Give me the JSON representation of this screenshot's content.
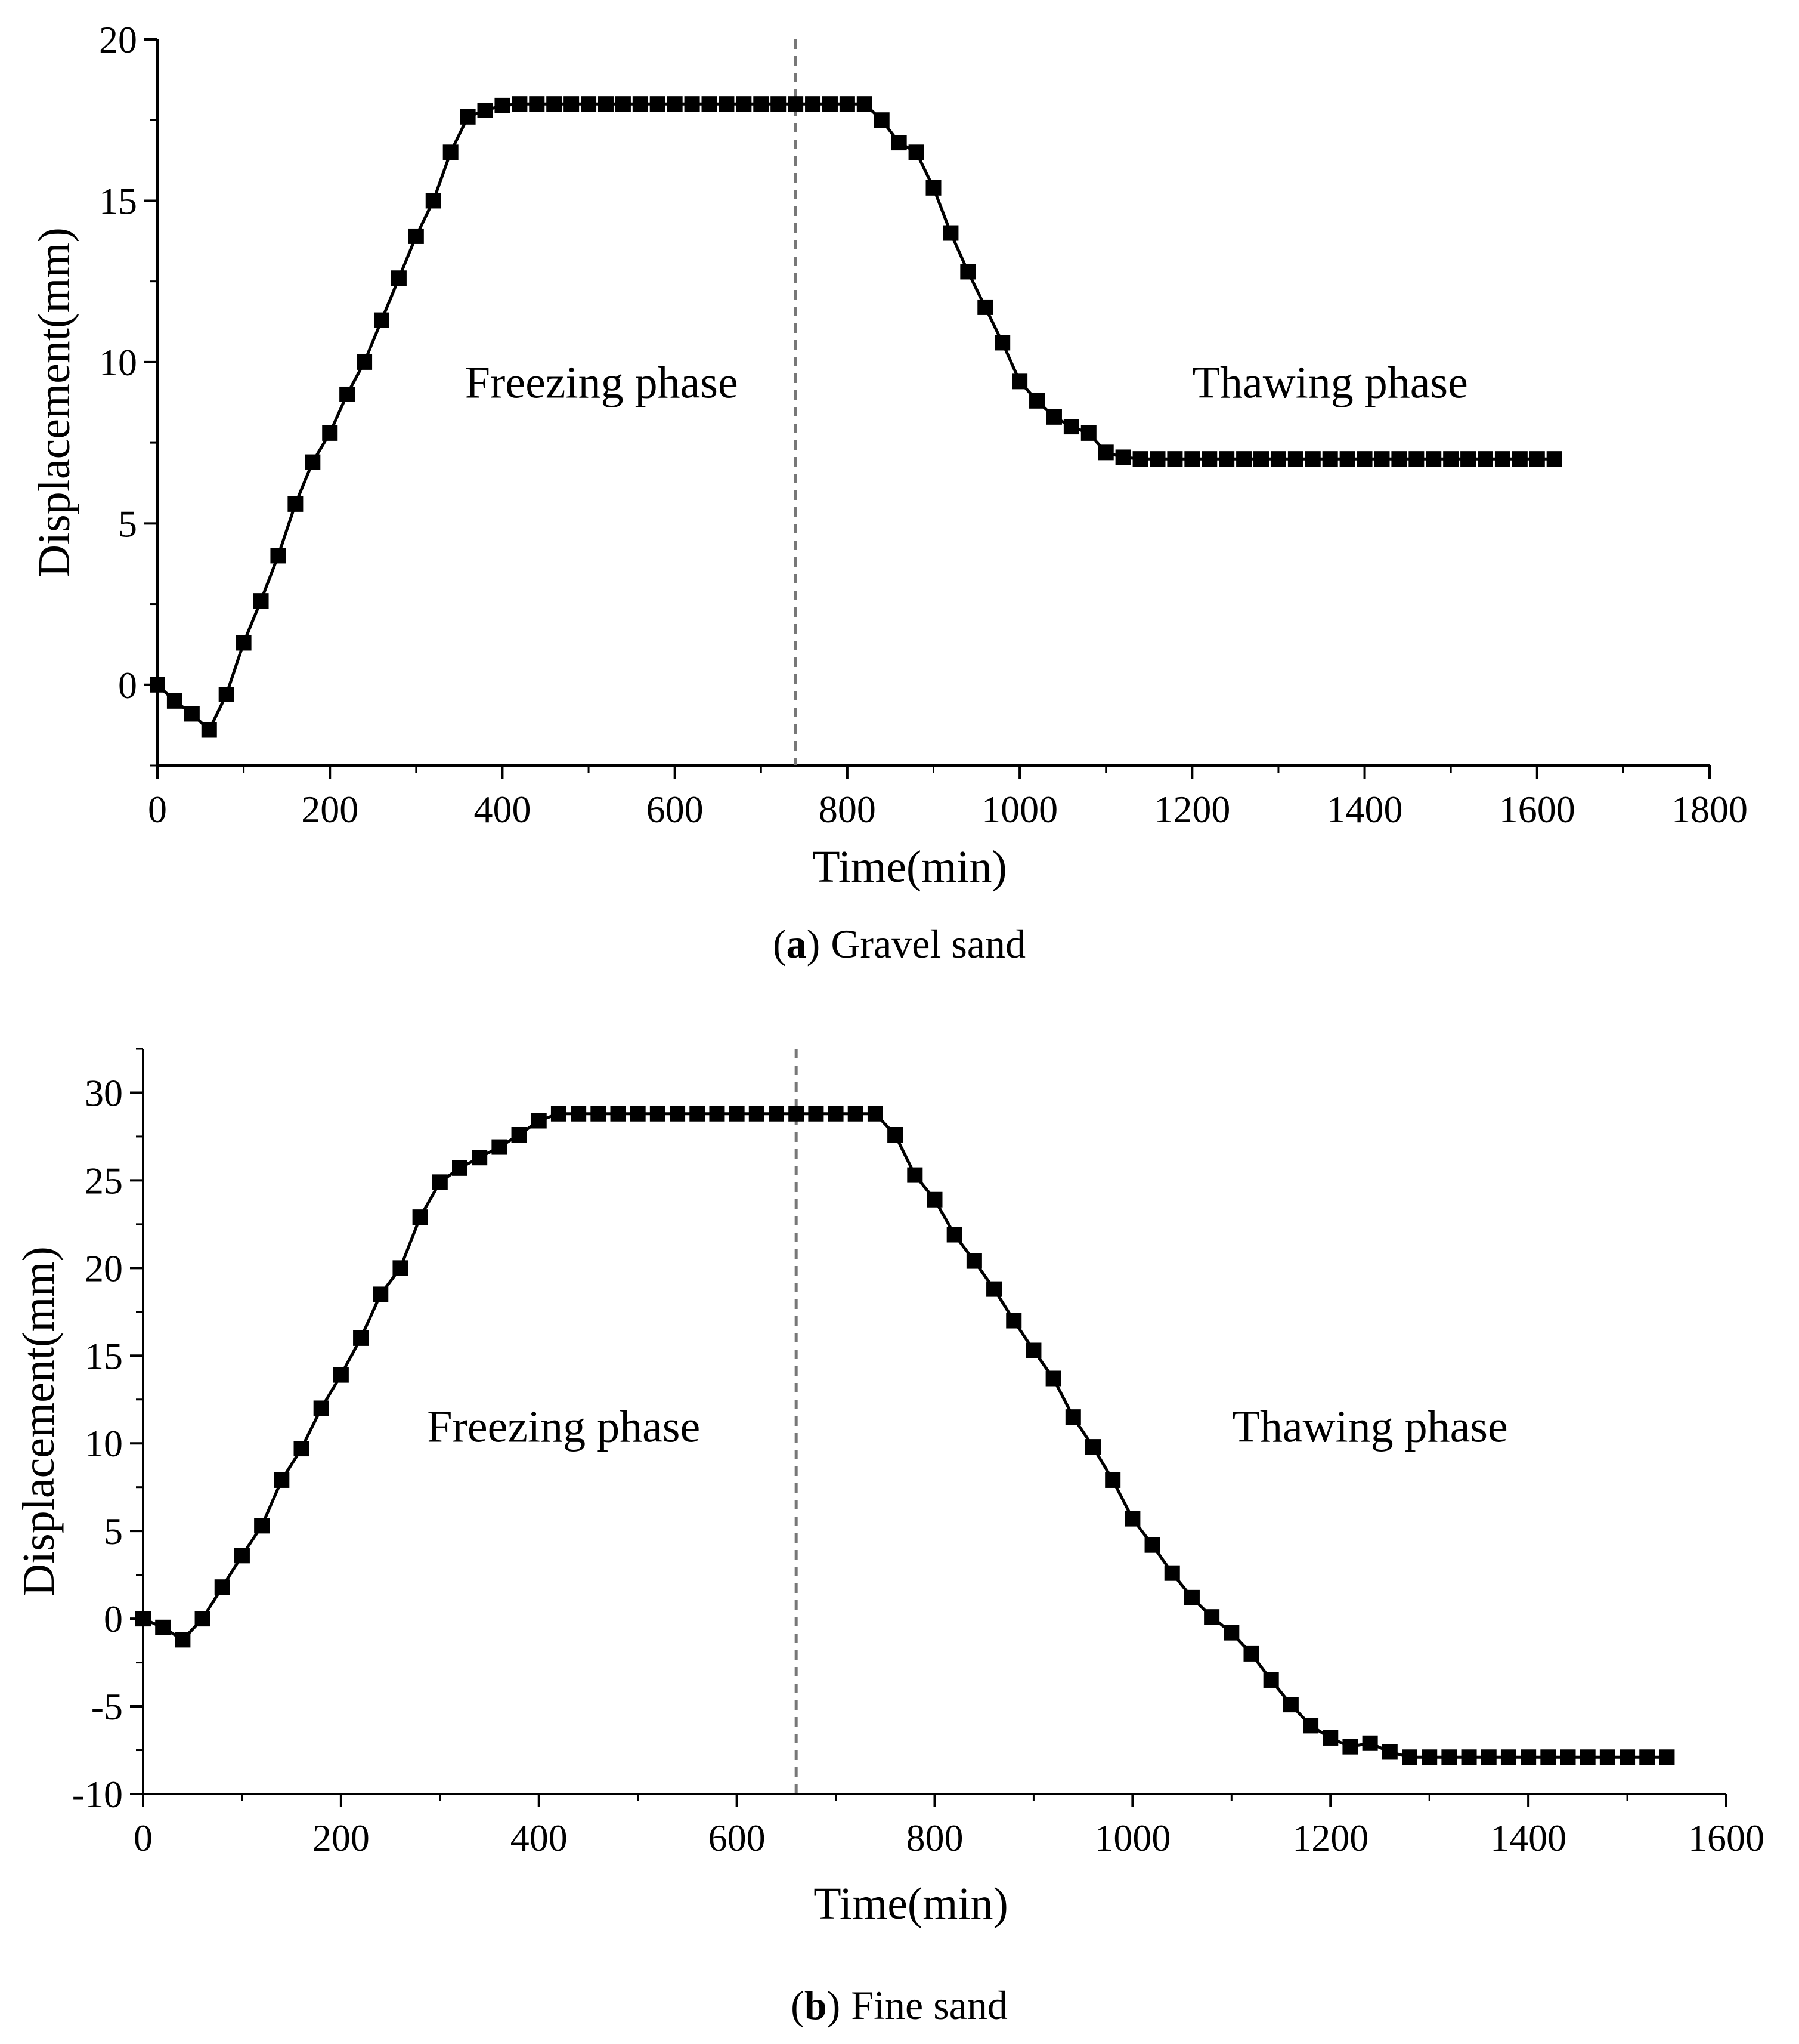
{
  "chart_data": [
    {
      "type": "line",
      "caption": {
        "open": "(",
        "letter": "a",
        "close": ")",
        "text": "Gravel sand"
      },
      "xlabel": "Time(min)",
      "ylabel": "Displacement(mm)",
      "xlim": [
        0,
        1800
      ],
      "ylim": [
        -2.5,
        20
      ],
      "x_ticks": [
        0,
        200,
        400,
        600,
        800,
        1000,
        1200,
        1400,
        1600,
        1800
      ],
      "y_ticks": [
        0,
        5,
        10,
        15,
        20
      ],
      "grid": false,
      "marker": "square",
      "line_color": "#000000",
      "divider": {
        "x": 740,
        "style": "dashed",
        "color": "#777777"
      },
      "annotations": [
        {
          "text": "Freezing phase",
          "x": 515,
          "y": 8.9
        },
        {
          "text": "Thawing phase",
          "x": 1360,
          "y": 8.9
        }
      ],
      "series": [
        {
          "x": [
            0,
            20,
            40,
            60,
            80,
            100,
            120,
            140,
            160,
            180,
            200,
            220,
            240,
            260,
            280,
            300,
            320,
            340,
            360,
            380,
            400,
            420,
            440,
            460,
            480,
            500,
            520,
            540,
            560,
            580,
            600,
            620,
            640,
            660,
            680,
            700,
            720,
            740,
            760,
            780,
            800,
            820,
            840,
            860,
            880,
            900,
            920,
            940,
            960,
            980,
            1000,
            1020,
            1040,
            1060,
            1080,
            1100,
            1120,
            1140,
            1160,
            1180,
            1200,
            1220,
            1240,
            1260,
            1280,
            1300,
            1320,
            1340,
            1360,
            1380,
            1400,
            1420,
            1440,
            1460,
            1480,
            1500,
            1520,
            1540,
            1560,
            1580,
            1600,
            1620
          ],
          "y": [
            0,
            -0.5,
            -0.9,
            -1.4,
            -0.3,
            1.3,
            2.6,
            4.0,
            5.6,
            6.9,
            7.8,
            9.0,
            10.0,
            11.3,
            12.6,
            13.9,
            15.0,
            16.5,
            17.6,
            17.8,
            17.95,
            18.0,
            18.0,
            18.0,
            18.0,
            18.0,
            18.0,
            18.0,
            18.0,
            18.0,
            18.0,
            18.0,
            18.0,
            18.0,
            18.0,
            18.0,
            18.0,
            18.0,
            18.0,
            18.0,
            18.0,
            18.0,
            17.5,
            16.8,
            16.5,
            15.4,
            14.0,
            12.8,
            11.7,
            10.6,
            9.4,
            8.8,
            8.3,
            8.0,
            7.8,
            7.2,
            7.05,
            7.0,
            7.0,
            7.0,
            7.0,
            7.0,
            7.0,
            7.0,
            7.0,
            7.0,
            7.0,
            7.0,
            7.0,
            7.0,
            7.0,
            7.0,
            7.0,
            7.0,
            7.0,
            7.0,
            7.0,
            7.0,
            7.0,
            7.0,
            7.0,
            7.0
          ]
        }
      ]
    },
    {
      "type": "line",
      "caption": {
        "open": "(",
        "letter": "b",
        "close": ")",
        "text": "Fine sand"
      },
      "xlabel": "Time(min)",
      "ylabel": "Displacement(mm)",
      "xlim": [
        0,
        1600
      ],
      "ylim": [
        -10,
        32.5
      ],
      "x_ticks": [
        0,
        200,
        400,
        600,
        800,
        1000,
        1200,
        1400,
        1600
      ],
      "y_ticks": [
        -10,
        -5,
        0,
        5,
        10,
        15,
        20,
        25,
        30
      ],
      "grid": false,
      "marker": "square",
      "line_color": "#000000",
      "divider": {
        "x": 660,
        "style": "dashed",
        "color": "#777777"
      },
      "annotations": [
        {
          "text": "Freezing phase",
          "x": 425,
          "y": 10.1
        },
        {
          "text": "Thawing phase",
          "x": 1240,
          "y": 10.1
        }
      ],
      "series": [
        {
          "x": [
            0,
            20,
            40,
            60,
            80,
            100,
            120,
            140,
            160,
            180,
            200,
            220,
            240,
            260,
            280,
            300,
            320,
            340,
            360,
            380,
            400,
            420,
            440,
            460,
            480,
            500,
            520,
            540,
            560,
            580,
            600,
            620,
            640,
            660,
            680,
            700,
            720,
            740,
            760,
            780,
            800,
            820,
            840,
            860,
            880,
            900,
            920,
            940,
            960,
            980,
            1000,
            1020,
            1040,
            1060,
            1080,
            1100,
            1120,
            1140,
            1160,
            1180,
            1200,
            1220,
            1240,
            1260,
            1280,
            1300,
            1320,
            1340,
            1360,
            1380,
            1400,
            1420,
            1440,
            1460,
            1480,
            1500,
            1520,
            1540
          ],
          "y": [
            0,
            -0.5,
            -1.2,
            0,
            1.8,
            3.6,
            5.3,
            7.9,
            9.7,
            12.0,
            13.9,
            16.0,
            18.5,
            20.0,
            22.9,
            24.9,
            25.7,
            26.3,
            26.9,
            27.6,
            28.4,
            28.8,
            28.8,
            28.8,
            28.8,
            28.8,
            28.8,
            28.8,
            28.8,
            28.8,
            28.8,
            28.8,
            28.8,
            28.8,
            28.8,
            28.8,
            28.8,
            28.8,
            27.6,
            25.3,
            23.9,
            21.9,
            20.4,
            18.8,
            17.0,
            15.3,
            13.7,
            11.5,
            9.8,
            7.9,
            5.7,
            4.2,
            2.6,
            1.2,
            0.1,
            -0.8,
            -2.0,
            -3.5,
            -4.9,
            -6.1,
            -6.8,
            -7.3,
            -7.1,
            -7.6,
            -7.9,
            -7.9,
            -7.9,
            -7.9,
            -7.9,
            -7.9,
            -7.9,
            -7.9,
            -7.9,
            -7.9,
            -7.9,
            -7.9,
            -7.9,
            -7.9
          ]
        }
      ]
    }
  ]
}
